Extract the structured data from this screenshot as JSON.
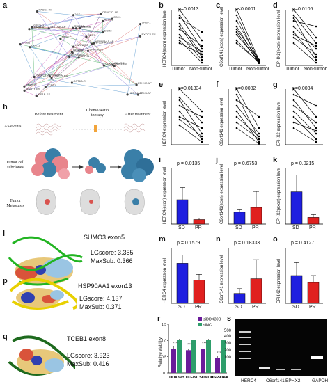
{
  "panel_letters": {
    "a": "a",
    "b": "b",
    "c": "c",
    "d": "d",
    "e": "e",
    "f": "f",
    "g": "g",
    "h": "h",
    "i": "i",
    "j": "j",
    "k": "k",
    "l": "l",
    "m": "m",
    "n": "n",
    "o": "o",
    "p": "p",
    "q": "q",
    "r": "r",
    "s": "s"
  },
  "network": {
    "nodes": [
      "SRPK1",
      "CLDN34-AT",
      "EGR4",
      "SNRP13",
      "ZNF124-AS-ES",
      "ZNF133-ES",
      "CSNK1D-AP",
      "SNRPE",
      "ALDH5",
      "SRP14-ES",
      "PACS1-RI",
      "CBX3-AT",
      "CDK11",
      "SRSF1",
      "KIF16B-ES",
      "EGR3",
      "KIF1B-ES",
      "SUMO3",
      "CDK7",
      "PABPC1-AT",
      "SRSF7",
      "MAGT1-ES",
      "TCEB1",
      "TCEB1-ES",
      "HSP90AA1-AP",
      "HIRA-ES",
      "GTF2H3",
      "CLK1",
      "SF3B1",
      "CLK3-RP",
      "EXOC2-ES",
      "DDX39B",
      "CCT6B-RI",
      "HNRNPA2",
      "SETD1B-AP",
      "CDK1",
      "RHBDF1",
      "HERC4-AT",
      "EPHX2-AP",
      "C6orf141"
    ]
  },
  "h": {
    "stage_before": "Before treatment",
    "stage_chemo_1": "Chemo/Ratio",
    "stage_chemo_2": "therapy",
    "stage_after": "After treatment",
    "row_as": "AS events",
    "row_tumor_1": "Tumor cell",
    "row_tumor_2": "subclones",
    "row_meta_1": "Tumor",
    "row_meta_2": "Metastasis"
  },
  "l": {
    "title": "SUMO3 exon5",
    "lg": "LGscore: 3.355",
    "maxsub": "MaxSub: 0.366"
  },
  "p": {
    "title": "HSP90AA1 exon13",
    "lg": "LGscore: 4.137",
    "maxsub": "MaxSub: 0.371"
  },
  "q": {
    "title": "TCEB1 exon8",
    "lg": "LGscore: 3.923",
    "maxsub": "MaxSub: 0.416"
  },
  "paired": [
    {
      "id": "b",
      "p": "p=0.0013",
      "ylabel": "HERC4(exon) expression level",
      "x": [
        "Tumor",
        "Non-tumor"
      ]
    },
    {
      "id": "c",
      "p": "p<0.0001",
      "ylabel": "C6orf141(exon) expression level",
      "x": [
        "Tumor",
        "Non-tumor"
      ]
    },
    {
      "id": "d",
      "p": "p=0.0106",
      "ylabel": "EPHX2(exon) expression level",
      "x": [
        "Tumor",
        "Non-tumor"
      ]
    },
    {
      "id": "e",
      "p": "p=0.01334",
      "ylabel": "HERC4 expression level",
      "x": []
    },
    {
      "id": "f",
      "p": "p=0.0082",
      "ylabel": "C6orf141 expression level",
      "x": []
    },
    {
      "id": "g",
      "p": "p=0.0034",
      "ylabel": "EPHX2 expression level",
      "x": []
    }
  ],
  "bars": [
    {
      "id": "i",
      "p": "p = 0.0135",
      "ylabel": "HERC4(exon) expression level",
      "x": [
        "SD",
        "PR"
      ]
    },
    {
      "id": "j",
      "p": "p = 0.6753",
      "ylabel": "C6orf141(exon) expression level",
      "x": [
        "SD",
        "PR"
      ]
    },
    {
      "id": "k",
      "p": "p = 0.0215",
      "ylabel": "EPHX2(exon) expression level",
      "x": [
        "SD",
        "PR"
      ]
    },
    {
      "id": "m",
      "p": "p = 0.1579",
      "ylabel": "HERC4 expression level",
      "x": [
        "SD",
        "PR"
      ]
    },
    {
      "id": "n",
      "p": "p = 0.18333",
      "ylabel": "C6orf141 expression level",
      "x": [
        "SD",
        "PR"
      ]
    },
    {
      "id": "o",
      "p": "p = 0.4127",
      "ylabel": "EPHX2 expression level",
      "x": [
        "SD",
        "PR"
      ]
    }
  ],
  "r": {
    "ylabel": "Relative viability",
    "legend": [
      "siDDX39B",
      "siNC"
    ],
    "stars": "***",
    "yticks": [
      "0.0",
      "0.5",
      "1.0",
      "1.5"
    ]
  },
  "s": {
    "ladder": [
      "500",
      "400",
      "300",
      "200",
      "100"
    ],
    "lanes": [
      "HERC4",
      "C6orf141",
      "EPHX2",
      "GAPDH"
    ]
  },
  "colors": {
    "blue": "#1f1fe0",
    "red": "#e0201f",
    "purple": "#6a1b9a",
    "green": "#2e9e6b"
  },
  "chart_data": [
    {
      "type": "line",
      "panel": "b",
      "categories": [
        "Tumor",
        "Non-tumor"
      ],
      "series_values": [
        [
          1.0,
          0.45
        ],
        [
          0.9,
          0.3
        ],
        [
          0.85,
          0.6
        ],
        [
          0.75,
          0.2
        ],
        [
          0.7,
          0.15
        ],
        [
          0.65,
          0.35
        ],
        [
          0.55,
          0.1
        ],
        [
          0.5,
          0.25
        ],
        [
          0.45,
          0.05
        ],
        [
          0.4,
          0.2
        ]
      ]
    },
    {
      "type": "line",
      "panel": "c",
      "categories": [
        "Tumor",
        "Non-tumor"
      ],
      "series_values": [
        [
          1.0,
          0.1
        ],
        [
          0.9,
          0.05
        ],
        [
          0.8,
          0.1
        ],
        [
          0.7,
          0.05
        ],
        [
          0.65,
          0.1
        ],
        [
          0.6,
          0.05
        ],
        [
          0.55,
          0.08
        ],
        [
          0.45,
          0.04
        ],
        [
          0.4,
          0.06
        ]
      ]
    },
    {
      "type": "line",
      "panel": "d",
      "categories": [
        "Tumor",
        "Non-tumor"
      ],
      "series_values": [
        [
          1.0,
          0.5
        ],
        [
          0.9,
          0.4
        ],
        [
          0.85,
          0.15
        ],
        [
          0.8,
          0.7
        ],
        [
          0.7,
          0.3
        ],
        [
          0.6,
          0.1
        ],
        [
          0.55,
          0.35
        ],
        [
          0.5,
          0.2
        ],
        [
          0.4,
          0.05
        ]
      ]
    },
    {
      "type": "line",
      "panel": "e",
      "categories": [
        "Tumor",
        "Non-tumor"
      ],
      "series_values": [
        [
          1.0,
          0.6
        ],
        [
          0.85,
          0.4
        ],
        [
          0.8,
          0.2
        ],
        [
          0.7,
          0.5
        ],
        [
          0.6,
          0.1
        ],
        [
          0.5,
          0.3
        ],
        [
          0.45,
          0.15
        ],
        [
          0.35,
          0.05
        ]
      ]
    },
    {
      "type": "line",
      "panel": "f",
      "categories": [
        "Tumor",
        "Non-tumor"
      ],
      "series_values": [
        [
          1.0,
          0.3
        ],
        [
          0.9,
          0.1
        ],
        [
          0.8,
          0.5
        ],
        [
          0.7,
          0.2
        ],
        [
          0.6,
          0.05
        ],
        [
          0.5,
          0.15
        ],
        [
          0.4,
          0.1
        ],
        [
          0.3,
          0.02
        ]
      ]
    },
    {
      "type": "line",
      "panel": "g",
      "categories": [
        "Tumor",
        "Non-tumor"
      ],
      "series_values": [
        [
          1.0,
          0.5
        ],
        [
          0.9,
          0.7
        ],
        [
          0.8,
          0.3
        ],
        [
          0.7,
          0.4
        ],
        [
          0.6,
          0.2
        ],
        [
          0.5,
          0.1
        ],
        [
          0.4,
          0.25
        ],
        [
          0.3,
          0.05
        ]
      ]
    },
    {
      "type": "bar",
      "panel": "i",
      "categories": [
        "SD",
        "PR"
      ],
      "values": [
        0.7,
        0.13
      ],
      "errors": [
        0.35,
        0.04
      ],
      "ylim": [
        0,
        1.6
      ]
    },
    {
      "type": "bar",
      "panel": "j",
      "categories": [
        "SD",
        "PR"
      ],
      "values": [
        0.3,
        0.42
      ],
      "errors": [
        0.06,
        0.4
      ],
      "ylim": [
        0,
        1.4
      ]
    },
    {
      "type": "bar",
      "panel": "k",
      "categories": [
        "SD",
        "PR"
      ],
      "values": [
        0.58,
        0.12
      ],
      "errors": [
        0.3,
        0.05
      ],
      "ylim": [
        0,
        1.0
      ]
    },
    {
      "type": "bar",
      "panel": "m",
      "categories": [
        "SD",
        "PR"
      ],
      "values": [
        0.72,
        0.42
      ],
      "errors": [
        0.15,
        0.1
      ],
      "ylim": [
        0,
        1.0
      ]
    },
    {
      "type": "bar",
      "panel": "n",
      "categories": [
        "SD",
        "PR"
      ],
      "values": [
        0.25,
        0.62
      ],
      "errors": [
        0.12,
        0.48
      ],
      "ylim": [
        0,
        1.4
      ]
    },
    {
      "type": "bar",
      "panel": "o",
      "categories": [
        "SD",
        "PR"
      ],
      "values": [
        0.6,
        0.45
      ],
      "errors": [
        0.28,
        0.15
      ],
      "ylim": [
        0,
        1.2
      ]
    },
    {
      "type": "bar",
      "panel": "r",
      "categories": [
        "DDX39B",
        "TCEB1",
        "SUMO3",
        "HSP90AA1"
      ],
      "series": [
        {
          "name": "siDDX39B",
          "values": [
            0.75,
            0.7,
            0.75,
            0.45
          ],
          "errors": [
            0.08,
            0.05,
            0.08,
            0.08
          ]
        },
        {
          "name": "siNC",
          "values": [
            1.02,
            1.02,
            1.02,
            1.02
          ],
          "errors": [
            0.03,
            0.03,
            0.03,
            0.03
          ]
        }
      ],
      "ylabel": "Relative viability",
      "ylim": [
        0,
        1.5
      ]
    }
  ]
}
